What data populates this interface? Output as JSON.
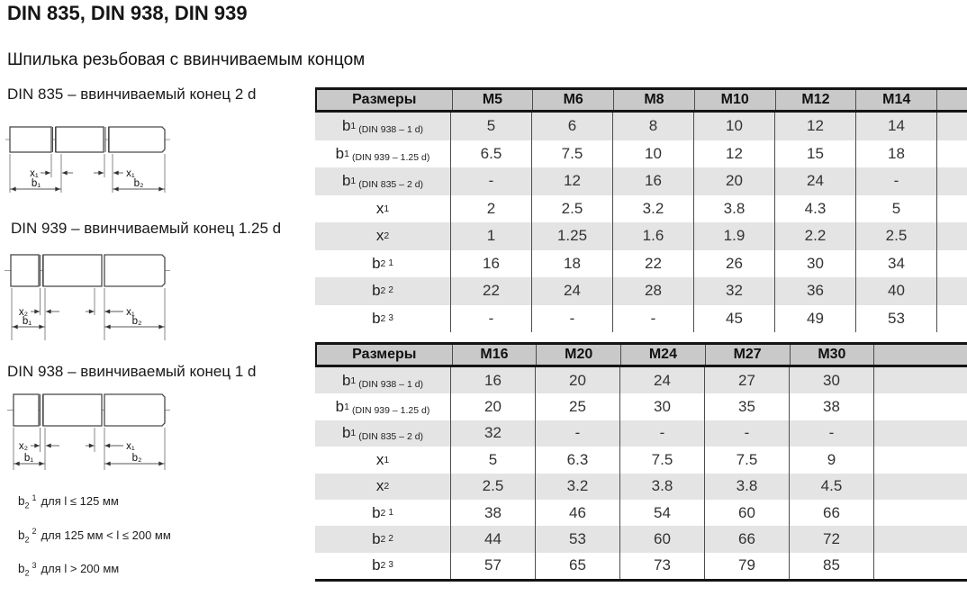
{
  "page": {
    "title": "DIN 835, DIN 938, DIN 939",
    "subtitle": "Шпилька резьбовая с ввинчиваемым концом"
  },
  "drawings": [
    {
      "caption": "DIN 835 – ввинчиваемый конец 2 d",
      "dims": {
        "left_x": "x₁",
        "right_x": "x₁",
        "left_b": "b₁",
        "right_b": "b₂"
      }
    },
    {
      "caption": "DIN 939 – ввинчиваемый конец 1.25 d",
      "dims": {
        "left_x": "x₂",
        "right_x": "x₁",
        "left_b": "b₁",
        "right_b": "b₂"
      }
    },
    {
      "caption": "DIN 938 – ввинчиваемый конец 1 d",
      "dims": {
        "left_x": "x₂",
        "right_x": "x₁",
        "left_b": "b₁",
        "right_b": "b₂"
      }
    }
  ],
  "footnotes": [
    {
      "base": "b",
      "sub": "2",
      "sup": "1",
      "condition": "для l ≤ 125 мм"
    },
    {
      "base": "b",
      "sub": "2",
      "sup": "2",
      "condition": "для 125 мм < l ≤ 200 мм"
    },
    {
      "base": "b",
      "sub": "2",
      "sup": "3",
      "condition": "для l > 200 мм"
    }
  ],
  "tables": [
    {
      "header": [
        "Размеры",
        "M5",
        "M6",
        "M8",
        "M10",
        "M12",
        "M14"
      ],
      "rows": [
        {
          "label": {
            "base": "b",
            "sub": "1",
            "note": "(DIN 938 – 1 d)"
          },
          "values": [
            "5",
            "6",
            "8",
            "10",
            "12",
            "14"
          ]
        },
        {
          "label": {
            "base": "b",
            "sub": "1",
            "note": "(DIN 939 – 1.25 d)"
          },
          "values": [
            "6.5",
            "7.5",
            "10",
            "12",
            "15",
            "18"
          ]
        },
        {
          "label": {
            "base": "b",
            "sub": "1",
            "note": "(DIN 835 – 2 d)"
          },
          "values": [
            "-",
            "12",
            "16",
            "20",
            "24",
            "-"
          ]
        },
        {
          "label": {
            "base": "x",
            "sub": "1"
          },
          "values": [
            "2",
            "2.5",
            "3.2",
            "3.8",
            "4.3",
            "5"
          ]
        },
        {
          "label": {
            "base": "x",
            "sub": "2"
          },
          "values": [
            "1",
            "1.25",
            "1.6",
            "1.9",
            "2.2",
            "2.5"
          ]
        },
        {
          "label": {
            "base": "b",
            "sub": "2",
            "sup": "1"
          },
          "values": [
            "16",
            "18",
            "22",
            "26",
            "30",
            "34"
          ]
        },
        {
          "label": {
            "base": "b",
            "sub": "2",
            "sup": "2"
          },
          "values": [
            "22",
            "24",
            "28",
            "32",
            "36",
            "40"
          ]
        },
        {
          "label": {
            "base": "b",
            "sub": "2",
            "sup": "3"
          },
          "values": [
            "-",
            "-",
            "-",
            "45",
            "49",
            "53"
          ]
        }
      ]
    },
    {
      "header": [
        "Размеры",
        "M16",
        "M20",
        "M24",
        "M27",
        "M30"
      ],
      "rows": [
        {
          "label": {
            "base": "b",
            "sub": "1",
            "note": "(DIN 938 – 1 d)"
          },
          "values": [
            "16",
            "20",
            "24",
            "27",
            "30"
          ]
        },
        {
          "label": {
            "base": "b",
            "sub": "1",
            "note": "(DIN 939 – 1.25 d)"
          },
          "values": [
            "20",
            "25",
            "30",
            "35",
            "38"
          ]
        },
        {
          "label": {
            "base": "b",
            "sub": "1",
            "note": "(DIN 835 – 2 d)"
          },
          "values": [
            "32",
            "-",
            "-",
            "-",
            "-"
          ]
        },
        {
          "label": {
            "base": "x",
            "sub": "1"
          },
          "values": [
            "5",
            "6.3",
            "7.5",
            "7.5",
            "9"
          ]
        },
        {
          "label": {
            "base": "x",
            "sub": "2"
          },
          "values": [
            "2.5",
            "3.2",
            "3.8",
            "3.8",
            "4.5"
          ]
        },
        {
          "label": {
            "base": "b",
            "sub": "2",
            "sup": "1"
          },
          "values": [
            "38",
            "46",
            "54",
            "60",
            "66"
          ]
        },
        {
          "label": {
            "base": "b",
            "sub": "2",
            "sup": "2"
          },
          "values": [
            "44",
            "53",
            "60",
            "66",
            "72"
          ]
        },
        {
          "label": {
            "base": "b",
            "sub": "2",
            "sup": "3"
          },
          "values": [
            "57",
            "65",
            "73",
            "79",
            "85"
          ]
        }
      ]
    }
  ],
  "colors": {
    "header_bg": "#c9c9c9",
    "stripe_bg": "#e4e4e4",
    "border_dark": "#141414",
    "grid_line": "#4d4d4d"
  }
}
